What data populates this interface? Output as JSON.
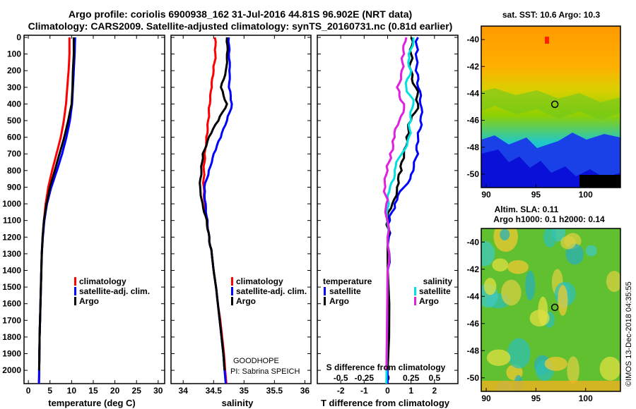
{
  "title": {
    "line1": "Argo profile: coriolis 6900938_162 31-Jul-2016 44.81S 96.902E (NRT data)",
    "line2": "Climatology: CARS2009. Satellite-adjusted climatology: synTS_20160731.nc (0.81d earlier)"
  },
  "colors": {
    "climatology": "#ff0000",
    "satellite": "#0000ff",
    "argo": "#000000",
    "s_satellite": "#00e0e0",
    "s_argo": "#e020e0"
  },
  "chart_data": [
    {
      "type": "line",
      "id": "temperature",
      "xlabel": "temperature (deg C)",
      "xlim": [
        -1,
        31.5
      ],
      "xticks": [
        0,
        5,
        10,
        15,
        20,
        25,
        30
      ],
      "ylim": [
        2080,
        0
      ],
      "yticks": [
        0,
        100,
        200,
        300,
        400,
        500,
        600,
        700,
        800,
        900,
        1000,
        1100,
        1200,
        1300,
        1400,
        1500,
        1600,
        1700,
        1800,
        1900,
        2000
      ],
      "legend": [
        "climatology",
        "satellite-adj. clim.",
        "Argo"
      ],
      "series": [
        {
          "name": "climatology",
          "color": "#ff0000",
          "points": [
            [
              9.5,
              0
            ],
            [
              9.5,
              100
            ],
            [
              9.3,
              200
            ],
            [
              9.0,
              300
            ],
            [
              8.7,
              400
            ],
            [
              8.2,
              500
            ],
            [
              7.5,
              600
            ],
            [
              6.5,
              700
            ],
            [
              5.5,
              800
            ],
            [
              4.6,
              900
            ],
            [
              4.0,
              1000
            ],
            [
              3.6,
              1100
            ],
            [
              3.3,
              1200
            ],
            [
              3.1,
              1300
            ],
            [
              3.0,
              1400
            ],
            [
              2.9,
              1500
            ],
            [
              2.8,
              1600
            ],
            [
              2.7,
              1700
            ],
            [
              2.6,
              1800
            ],
            [
              2.55,
              1900
            ],
            [
              2.5,
              2000
            ],
            [
              2.45,
              2080
            ]
          ]
        },
        {
          "name": "satellite-adj. clim.",
          "color": "#0000ff",
          "points": [
            [
              10.8,
              0
            ],
            [
              10.7,
              100
            ],
            [
              10.5,
              200
            ],
            [
              10.3,
              300
            ],
            [
              10.1,
              400
            ],
            [
              9.6,
              500
            ],
            [
              8.8,
              600
            ],
            [
              7.8,
              700
            ],
            [
              6.6,
              800
            ],
            [
              5.3,
              900
            ],
            [
              4.3,
              1000
            ],
            [
              3.7,
              1100
            ],
            [
              3.35,
              1200
            ],
            [
              3.1,
              1300
            ],
            [
              3.0,
              1400
            ],
            [
              2.9,
              1500
            ],
            [
              2.8,
              1600
            ],
            [
              2.7,
              1700
            ],
            [
              2.6,
              1800
            ],
            [
              2.55,
              1900
            ],
            [
              2.5,
              2000
            ],
            [
              2.45,
              2080
            ]
          ]
        },
        {
          "name": "Argo",
          "color": "#000000",
          "points": [
            [
              10.5,
              0
            ],
            [
              10.5,
              100
            ],
            [
              10.3,
              200
            ],
            [
              10.2,
              300
            ],
            [
              10.0,
              400
            ],
            [
              9.2,
              500
            ],
            [
              8.3,
              600
            ],
            [
              7.2,
              700
            ],
            [
              6.1,
              800
            ],
            [
              5.0,
              900
            ],
            [
              4.2,
              1000
            ],
            [
              3.6,
              1100
            ],
            [
              3.3,
              1200
            ],
            [
              3.1,
              1300
            ],
            [
              3.0,
              1400
            ],
            [
              2.9,
              1500
            ],
            [
              2.8,
              1600
            ],
            [
              2.7,
              1700
            ],
            [
              2.6,
              1800
            ],
            [
              2.55,
              1900
            ],
            [
              2.5,
              2000
            ]
          ]
        }
      ]
    },
    {
      "type": "line",
      "id": "salinity",
      "xlabel": "salinity",
      "xlim": [
        33.8,
        36.1
      ],
      "xticks": [
        34,
        34.5,
        35,
        35.5,
        36
      ],
      "ylim": [
        2080,
        0
      ],
      "legend": [
        "climatology",
        "satellite-adj. clim.",
        "Argo"
      ],
      "annotation": [
        "GOODHOPE",
        "PI: Sabrina SPEICH"
      ],
      "series": [
        {
          "name": "climatology",
          "color": "#ff0000",
          "points": [
            [
              34.52,
              0
            ],
            [
              34.53,
              100
            ],
            [
              34.5,
              200
            ],
            [
              34.47,
              300
            ],
            [
              34.44,
              400
            ],
            [
              34.41,
              500
            ],
            [
              34.38,
              600
            ],
            [
              34.35,
              700
            ],
            [
              34.34,
              800
            ],
            [
              34.34,
              900
            ],
            [
              34.36,
              1000
            ],
            [
              34.39,
              1100
            ],
            [
              34.43,
              1200
            ],
            [
              34.47,
              1300
            ],
            [
              34.5,
              1400
            ],
            [
              34.54,
              1500
            ],
            [
              34.57,
              1600
            ],
            [
              34.61,
              1700
            ],
            [
              34.64,
              1800
            ],
            [
              34.67,
              1900
            ],
            [
              34.69,
              2000
            ],
            [
              34.71,
              2080
            ]
          ]
        },
        {
          "name": "satellite-adj. clim.",
          "color": "#0000ff",
          "points": [
            [
              34.75,
              0
            ],
            [
              34.75,
              100
            ],
            [
              34.76,
              200
            ],
            [
              34.75,
              300
            ],
            [
              34.8,
              400
            ],
            [
              34.72,
              500
            ],
            [
              34.62,
              600
            ],
            [
              34.5,
              700
            ],
            [
              34.42,
              800
            ],
            [
              34.35,
              900
            ],
            [
              34.37,
              1000
            ],
            [
              34.4,
              1100
            ],
            [
              34.43,
              1200
            ],
            [
              34.47,
              1300
            ],
            [
              34.5,
              1400
            ],
            [
              34.54,
              1500
            ],
            [
              34.57,
              1600
            ],
            [
              34.6,
              1700
            ],
            [
              34.63,
              1800
            ],
            [
              34.66,
              1900
            ],
            [
              34.68,
              2000
            ],
            [
              34.7,
              2080
            ]
          ]
        },
        {
          "name": "Argo",
          "color": "#000000",
          "points": [
            [
              34.72,
              0
            ],
            [
              34.72,
              100
            ],
            [
              34.7,
              200
            ],
            [
              34.62,
              300
            ],
            [
              34.72,
              400
            ],
            [
              34.58,
              500
            ],
            [
              34.42,
              600
            ],
            [
              34.32,
              700
            ],
            [
              34.3,
              800
            ],
            [
              34.28,
              900
            ],
            [
              34.32,
              1000
            ],
            [
              34.39,
              1100
            ],
            [
              34.43,
              1200
            ],
            [
              34.47,
              1300
            ],
            [
              34.5,
              1400
            ],
            [
              34.54,
              1500
            ],
            [
              34.57,
              1600
            ],
            [
              34.6,
              1700
            ],
            [
              34.63,
              1800
            ],
            [
              34.66,
              1900
            ],
            [
              34.68,
              2000
            ]
          ]
        }
      ]
    },
    {
      "type": "line",
      "id": "differences",
      "xlabel": "T difference from climatology",
      "xlabel2": "S difference from climatology",
      "xlim": [
        -3,
        3
      ],
      "xticks": [
        -2,
        -1,
        0,
        1,
        2
      ],
      "xticks2_labels": [
        "-0.5",
        "-0.25",
        "0",
        "0.25",
        "0.5"
      ],
      "xticks2_pos": [
        -2,
        -1,
        0,
        1,
        2
      ],
      "ylim": [
        2080,
        0
      ],
      "legend_left_title": "temperature",
      "legend_right_title": "salinity",
      "legend_left": [
        "satellite",
        "Argo"
      ],
      "legend_right": [
        "satellite",
        "Argo"
      ],
      "series": [
        {
          "name": "T satellite",
          "color": "#0000ff",
          "points": [
            [
              1.3,
              0
            ],
            [
              1.2,
              100
            ],
            [
              1.2,
              200
            ],
            [
              1.3,
              300
            ],
            [
              1.4,
              400
            ],
            [
              1.4,
              500
            ],
            [
              1.3,
              600
            ],
            [
              1.3,
              700
            ],
            [
              1.1,
              800
            ],
            [
              0.7,
              900
            ],
            [
              0.3,
              1000
            ],
            [
              0.1,
              1100
            ],
            [
              0.05,
              1200
            ],
            [
              0.0,
              1400
            ],
            [
              0.0,
              2080
            ]
          ]
        },
        {
          "name": "T Argo",
          "color": "#000000",
          "points": [
            [
              1.0,
              0
            ],
            [
              1.0,
              100
            ],
            [
              1.0,
              200
            ],
            [
              1.2,
              300
            ],
            [
              1.3,
              400
            ],
            [
              1.0,
              500
            ],
            [
              0.8,
              600
            ],
            [
              0.7,
              700
            ],
            [
              0.6,
              800
            ],
            [
              0.4,
              900
            ],
            [
              0.2,
              1000
            ],
            [
              0.0,
              1100
            ],
            [
              0.0,
              1200
            ],
            [
              0.0,
              2000
            ]
          ]
        },
        {
          "name": "S satellite",
          "color": "#00e0e0",
          "points": [
            [
              1.1,
              0
            ],
            [
              0.9,
              100
            ],
            [
              1.0,
              200
            ],
            [
              0.8,
              300
            ],
            [
              1.1,
              400
            ],
            [
              1.0,
              500
            ],
            [
              0.9,
              600
            ],
            [
              0.6,
              700
            ],
            [
              0.3,
              800
            ],
            [
              0.1,
              900
            ],
            [
              0.05,
              1000
            ],
            [
              0.0,
              1200
            ],
            [
              0.0,
              1400
            ],
            [
              -0.05,
              2080
            ]
          ]
        },
        {
          "name": "S Argo",
          "color": "#e020e0",
          "points": [
            [
              0.8,
              0
            ],
            [
              0.7,
              100
            ],
            [
              0.6,
              200
            ],
            [
              0.4,
              300
            ],
            [
              0.7,
              400
            ],
            [
              0.5,
              500
            ],
            [
              0.3,
              600
            ],
            [
              0.1,
              700
            ],
            [
              0.0,
              800
            ],
            [
              -0.1,
              900
            ],
            [
              -0.05,
              1000
            ],
            [
              0.0,
              1200
            ],
            [
              0.0,
              1400
            ],
            [
              -0.05,
              2000
            ]
          ]
        }
      ]
    },
    {
      "type": "heatmap",
      "id": "sst_map",
      "title": "sat. SST: 10.6 Argo: 10.3",
      "xticks": [
        90,
        95,
        100
      ],
      "xlim": [
        89.5,
        103.5
      ],
      "yticks": [
        -40,
        -42,
        -44,
        -46,
        -48,
        -50
      ],
      "ylim": [
        -51,
        -39
      ],
      "marker": [
        96.902,
        -44.81
      ]
    },
    {
      "type": "heatmap",
      "id": "sla_map",
      "title": "Altim. SLA: 0.11",
      "subtitle": "Argo h1000: 0.1 h2000: 0.14",
      "xticks": [
        90,
        95,
        100
      ],
      "xlim": [
        89.5,
        103.5
      ],
      "yticks": [
        -40,
        -42,
        -44,
        -46,
        -48,
        -50
      ],
      "ylim": [
        -51,
        -39
      ],
      "marker": [
        96.902,
        -44.81
      ]
    }
  ],
  "credit": "©IMOS 13-Dec-2018 04:35:55"
}
